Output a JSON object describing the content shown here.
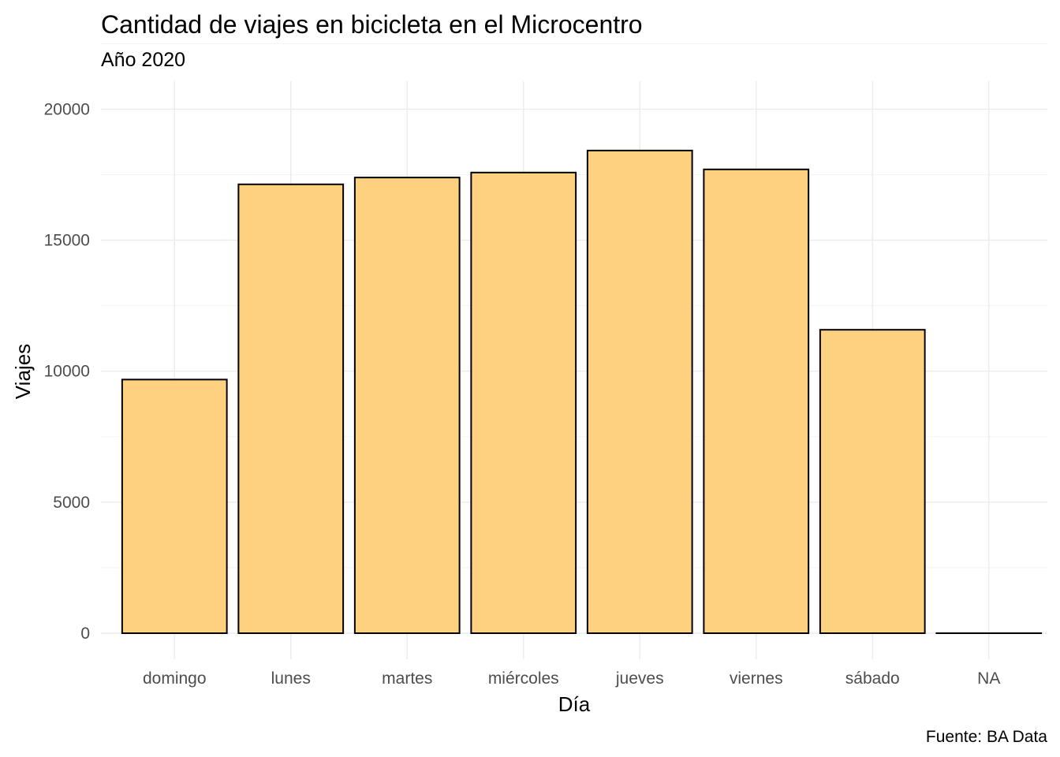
{
  "chart_data": {
    "type": "bar",
    "title": "Cantidad de viajes en bicicleta en el Microcentro",
    "subtitle": "Año 2020",
    "xlabel": "Día",
    "ylabel": "Viajes",
    "caption": "Fuente: BA Data",
    "categories": [
      "domingo",
      "lunes",
      "martes",
      "miércoles",
      "jueves",
      "viernes",
      "sábado",
      "NA"
    ],
    "values": [
      9680,
      17130,
      17390,
      17580,
      18420,
      17700,
      11580,
      0
    ],
    "ylim": [
      0,
      20000
    ],
    "yticks": [
      "0",
      "5000",
      "10000",
      "15000",
      "20000"
    ],
    "grid": true,
    "bar_color": "#fed180",
    "bar_outline": "#000000"
  }
}
